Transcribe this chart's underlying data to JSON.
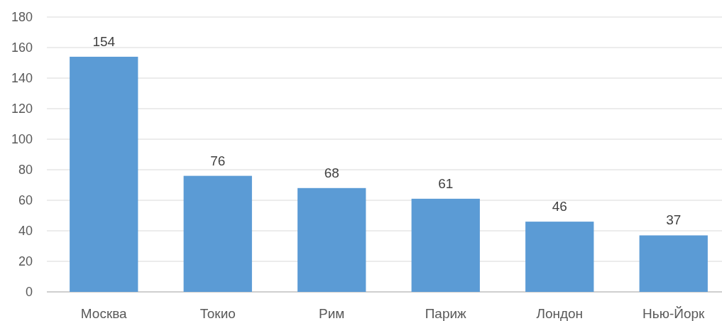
{
  "chart_data": {
    "type": "bar",
    "categories": [
      "Москва",
      "Токио",
      "Рим",
      "Париж",
      "Лондон",
      "Нью-Йорк"
    ],
    "values": [
      154,
      76,
      68,
      61,
      46,
      37
    ],
    "color": "#5b9bd5",
    "ylim": [
      0,
      180
    ],
    "yticks": [
      0,
      20,
      40,
      60,
      80,
      100,
      120,
      140,
      160,
      180
    ],
    "grid": "y",
    "data_labels": true
  }
}
